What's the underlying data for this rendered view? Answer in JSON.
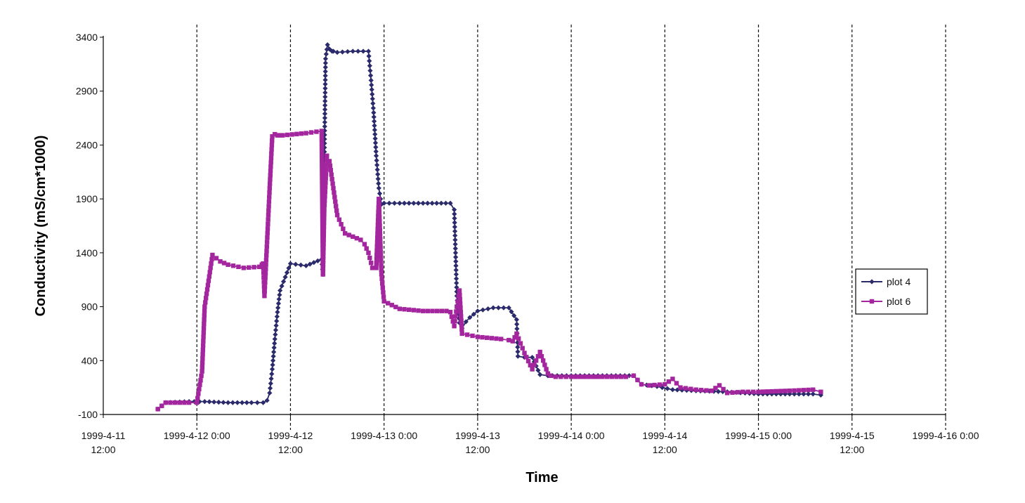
{
  "chart_data": {
    "type": "line",
    "title": "",
    "xlabel": "Time",
    "ylabel": "Conductivity (mS/cm*1000)",
    "ylim": [
      -100,
      3400
    ],
    "xlim": [
      "1999-04-11 12:00",
      "1999-04-16 00:00"
    ],
    "y_ticks": [
      "3400",
      "2900",
      "2400",
      "1900",
      "1400",
      "900",
      "400",
      "-100"
    ],
    "x_ticks": [
      {
        "t": "1999-04-11 12:00",
        "label": [
          "1999-4-11",
          "12:00"
        ]
      },
      {
        "t": "1999-04-12 00:00",
        "label": [
          "1999-4-12 0:00"
        ]
      },
      {
        "t": "1999-04-12 12:00",
        "label": [
          "1999-4-12",
          "12:00"
        ]
      },
      {
        "t": "1999-04-13 00:00",
        "label": [
          "1999-4-13 0:00"
        ]
      },
      {
        "t": "1999-04-13 12:00",
        "label": [
          "1999-4-13",
          "12:00"
        ]
      },
      {
        "t": "1999-04-14 00:00",
        "label": [
          "1999-4-14 0:00"
        ]
      },
      {
        "t": "1999-04-14 12:00",
        "label": [
          "1999-4-14",
          "12:00"
        ]
      },
      {
        "t": "1999-04-15 00:00",
        "label": [
          "1999-4-15 0:00"
        ]
      },
      {
        "t": "1999-04-15 12:00",
        "label": [
          "1999-4-15",
          "12:00"
        ]
      },
      {
        "t": "1999-04-16 00:00",
        "label": [
          "1999-4-16 0:00"
        ]
      }
    ],
    "vertical_grid": "dashed",
    "horizontal_grid": false,
    "legend_position": "right",
    "series": [
      {
        "name": "plot 4",
        "color": "#2b2a6b",
        "marker": "diamond",
        "x": [
          "1999-04-11 19:00",
          "1999-04-11 20:00",
          "1999-04-11 23:00",
          "1999-04-12 01:00",
          "1999-04-12 04:00",
          "1999-04-12 07:00",
          "1999-04-12 08:30",
          "1999-04-12 09:00",
          "1999-04-12 09:20",
          "1999-04-12 09:40",
          "1999-04-12 10:00",
          "1999-04-12 10:20",
          "1999-04-12 10:40",
          "1999-04-12 12:00",
          "1999-04-12 14:00",
          "1999-04-12 16:00",
          "1999-04-12 16:10",
          "1999-04-12 16:30",
          "1999-04-12 16:45",
          "1999-04-12 17:00",
          "1999-04-12 17:20",
          "1999-04-12 17:30",
          "1999-04-12 18:00",
          "1999-04-12 20:00",
          "1999-04-12 22:00",
          "1999-04-12 22:20",
          "1999-04-12 22:40",
          "1999-04-12 23:00",
          "1999-04-12 23:20",
          "1999-04-12 23:40",
          "1999-04-13 00:00",
          "1999-04-13 02:00",
          "1999-04-13 05:00",
          "1999-04-13 08:30",
          "1999-04-13 09:00",
          "1999-04-13 09:20",
          "1999-04-13 09:40",
          "1999-04-13 10:00",
          "1999-04-13 10:30",
          "1999-04-13 11:00",
          "1999-04-13 12:00",
          "1999-04-13 14:00",
          "1999-04-13 16:00",
          "1999-04-13 17:00",
          "1999-04-13 17:10",
          "1999-04-13 18:00",
          "1999-04-13 19:00",
          "1999-04-13 20:00",
          "1999-04-13 21:00",
          "1999-04-14 00:00",
          "1999-04-14 04:00",
          "1999-04-14 08:00",
          "1999-04-14 09:00",
          "1999-04-14 11:00",
          "1999-04-14 13:00",
          "1999-04-14 16:00",
          "1999-04-14 20:00",
          "1999-04-15 00:00",
          "1999-04-15 04:00",
          "1999-04-15 07:00",
          "1999-04-15 08:00"
        ],
        "y": [
          -50,
          10,
          20,
          20,
          10,
          10,
          10,
          30,
          100,
          320,
          600,
          850,
          1050,
          1300,
          1280,
          1340,
          1200,
          3200,
          3330,
          3290,
          3270,
          3270,
          3260,
          3270,
          3270,
          3000,
          2700,
          2300,
          2000,
          1850,
          1860,
          1860,
          1860,
          1860,
          1800,
          1000,
          750,
          700,
          760,
          800,
          860,
          890,
          890,
          780,
          440,
          430,
          430,
          270,
          260,
          260,
          260,
          260,
          180,
          160,
          130,
          120,
          110,
          90,
          90,
          90,
          80
        ]
      },
      {
        "name": "plot 6",
        "color": "#a3269e",
        "marker": "square",
        "x": [
          "1999-04-11 19:00",
          "1999-04-11 20:00",
          "1999-04-11 23:00",
          "1999-04-12 00:00",
          "1999-04-12 00:40",
          "1999-04-12 01:00",
          "1999-04-12 02:00",
          "1999-04-12 03:00",
          "1999-04-12 04:00",
          "1999-04-12 06:00",
          "1999-04-12 08:00",
          "1999-04-12 08:20",
          "1999-04-12 08:30",
          "1999-04-12 08:40",
          "1999-04-12 09:00",
          "1999-04-12 09:20",
          "1999-04-12 09:40",
          "1999-04-12 10:00",
          "1999-04-12 10:20",
          "1999-04-12 10:40",
          "1999-04-12 11:00",
          "1999-04-12 14:00",
          "1999-04-12 16:00",
          "1999-04-12 16:10",
          "1999-04-12 16:20",
          "1999-04-12 16:40",
          "1999-04-12 17:00",
          "1999-04-12 18:00",
          "1999-04-12 19:00",
          "1999-04-12 21:00",
          "1999-04-12 21:30",
          "1999-04-12 22:00",
          "1999-04-12 22:30",
          "1999-04-12 23:00",
          "1999-04-12 23:20",
          "1999-04-12 23:40",
          "1999-04-13 00:00",
          "1999-04-13 02:00",
          "1999-04-13 05:00",
          "1999-04-13 08:00",
          "1999-04-13 08:30",
          "1999-04-13 09:00",
          "1999-04-13 09:20",
          "1999-04-13 09:40",
          "1999-04-13 10:00",
          "1999-04-13 12:00",
          "1999-04-13 15:00",
          "1999-04-13 16:00",
          "1999-04-13 16:30",
          "1999-04-13 17:00",
          "1999-04-13 18:00",
          "1999-04-13 19:00",
          "1999-04-13 20:00",
          "1999-04-13 21:00",
          "1999-04-13 21:20",
          "1999-04-13 22:00",
          "1999-04-14 00:00",
          "1999-04-14 04:00",
          "1999-04-14 07:00",
          "1999-04-14 08:00",
          "1999-04-14 09:00",
          "1999-04-14 10:00",
          "1999-04-14 12:00",
          "1999-04-14 13:00",
          "1999-04-14 14:00",
          "1999-04-14 16:00",
          "1999-04-14 18:00",
          "1999-04-14 19:00",
          "1999-04-14 20:00",
          "1999-04-14 22:00",
          "1999-04-15 00:00",
          "1999-04-15 04:00",
          "1999-04-15 07:00",
          "1999-04-15 08:00"
        ],
        "y": [
          -50,
          10,
          10,
          10,
          300,
          900,
          1380,
          1320,
          1290,
          1260,
          1270,
          1290,
          1300,
          1000,
          1500,
          2000,
          2480,
          2500,
          2490,
          2490,
          2490,
          2510,
          2530,
          1200,
          1800,
          2300,
          2250,
          1750,
          1580,
          1520,
          1480,
          1400,
          1260,
          1260,
          1900,
          1200,
          950,
          880,
          860,
          860,
          850,
          720,
          900,
          1050,
          650,
          620,
          600,
          590,
          580,
          650,
          470,
          320,
          480,
          280,
          260,
          250,
          250,
          250,
          250,
          260,
          180,
          170,
          180,
          230,
          150,
          130,
          120,
          170,
          100,
          110,
          110,
          120,
          130,
          110
        ]
      }
    ]
  }
}
